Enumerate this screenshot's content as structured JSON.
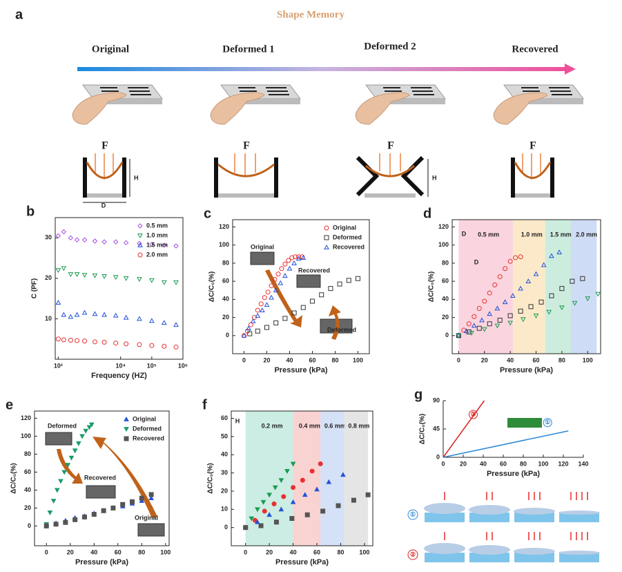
{
  "panel_a": {
    "letter": "a",
    "title": "Shape Memory",
    "stages": [
      "Original",
      "Deformed 1",
      "Deformed 2",
      "Recovered"
    ],
    "force": "F",
    "height": "H",
    "diameter": "D"
  },
  "chart_data": [
    {
      "panel": "b",
      "type": "scatter",
      "xlog": true,
      "xlabel": "Frequency (HZ)",
      "ylabel": "C (PF)",
      "legend": "upper right",
      "filled": false,
      "x": [
        100,
        150,
        250,
        400,
        700,
        1500,
        3000,
        7000,
        15000,
        40000,
        100000,
        250000,
        600000
      ],
      "xlim": [
        80,
        1000000
      ],
      "ylim": [
        0,
        35
      ],
      "xticks": [
        {
          "value": 100,
          "label": "10²"
        },
        {
          "value": 10000,
          "label": "10⁴"
        },
        {
          "value": 100000,
          "label": "10⁵"
        },
        {
          "value": 1000000,
          "label": "10⁶"
        }
      ],
      "yticks": [
        10,
        20,
        30
      ],
      "series": [
        {
          "name": "0.5 mm",
          "color": "#a64ee0",
          "marker": "diamond",
          "values": [
            30.5,
            31.5,
            30,
            29.5,
            29.5,
            29.2,
            29,
            29,
            28.8,
            28.6,
            28.4,
            28.2,
            28
          ]
        },
        {
          "name": "1.0 mm",
          "color": "#1a9a50",
          "marker": "triangle-down",
          "values": [
            22,
            22.5,
            21,
            21,
            20.8,
            20.7,
            20.5,
            20.3,
            20,
            19.8,
            19.5,
            19,
            19
          ]
        },
        {
          "name": "1.5 mm",
          "color": "#1f4fd9",
          "marker": "triangle-up",
          "values": [
            14,
            11,
            10.5,
            11,
            11.5,
            11.2,
            11,
            10.8,
            10.3,
            10,
            9.5,
            9,
            8.5
          ]
        },
        {
          "name": "2.0 mm",
          "color": "#e83030",
          "marker": "circle",
          "values": [
            5,
            4.8,
            4.7,
            4.6,
            4.5,
            4.3,
            4.2,
            4,
            3.8,
            3.6,
            3.4,
            3.2,
            3
          ]
        }
      ]
    },
    {
      "panel": "c",
      "type": "scatter",
      "xlabel": "Pressure (kPa)",
      "ylabel": "ΔC/C₀(%)",
      "legend": "upper right",
      "filled": false,
      "xlim": [
        -10,
        110
      ],
      "ylim": [
        -20,
        128
      ],
      "xticks": [
        0,
        20,
        40,
        60,
        80,
        100
      ],
      "yticks": [
        0,
        20,
        40,
        60,
        80,
        100,
        120
      ],
      "annotations": [
        {
          "text": "Original"
        },
        {
          "text": "Recovered"
        },
        {
          "text": "Deformed"
        }
      ],
      "series": [
        {
          "name": "Original",
          "color": "#e83030",
          "marker": "circle",
          "x": [
            0,
            3,
            6,
            9,
            12,
            15,
            18,
            21,
            24,
            27,
            30,
            33,
            36,
            39,
            42,
            45,
            48,
            51
          ],
          "values": [
            0,
            5,
            12,
            20,
            28,
            35,
            42,
            48,
            55,
            62,
            68,
            74,
            79,
            83,
            86,
            87,
            87,
            87
          ]
        },
        {
          "name": "Deformed",
          "color": "#333333",
          "marker": "square",
          "x": [
            5,
            12,
            20,
            28,
            36,
            44,
            52,
            60,
            68,
            76,
            84,
            92,
            100
          ],
          "values": [
            2,
            5,
            9,
            14,
            19,
            25,
            31,
            38,
            45,
            52,
            57,
            61,
            63
          ]
        },
        {
          "name": "Recovered",
          "color": "#1f4fd9",
          "marker": "triangle-up",
          "x": [
            0,
            4,
            8,
            12,
            16,
            20,
            24,
            28,
            32,
            36,
            40,
            44,
            48,
            52
          ],
          "values": [
            0,
            8,
            16,
            22,
            28,
            34,
            42,
            50,
            58,
            66,
            74,
            80,
            85,
            86
          ]
        }
      ]
    },
    {
      "panel": "d",
      "type": "scatter",
      "xlabel": "Pressure (kPa)",
      "ylabel": "ΔC/C₀(%)",
      "filled": false,
      "xlim": [
        -5,
        110
      ],
      "ylim": [
        -20,
        128
      ],
      "xticks": [
        0,
        20,
        40,
        60,
        80,
        100
      ],
      "yticks": [
        0,
        20,
        40,
        60,
        80,
        100,
        120
      ],
      "bands": [
        {
          "from": 0,
          "to": 42,
          "color": "#f9c9d6",
          "label": "0.5 mm"
        },
        {
          "from": 42,
          "to": 67,
          "color": "#fbe3bd",
          "label": "1.0 mm"
        },
        {
          "from": 67,
          "to": 87,
          "color": "#bfe8d6",
          "label": "1.5 mm"
        },
        {
          "from": 87,
          "to": 107,
          "color": "#c3d3f2",
          "label": "2.0 mm"
        }
      ],
      "annotations": [
        {
          "text": "D"
        },
        {
          "text": "D"
        }
      ],
      "series": [
        {
          "color": "#e83030",
          "marker": "circle",
          "x": [
            0,
            4,
            8,
            12,
            16,
            20,
            24,
            28,
            32,
            36,
            40,
            44,
            48
          ],
          "values": [
            0,
            6,
            13,
            21,
            30,
            38,
            47,
            56,
            65,
            74,
            82,
            86,
            87
          ]
        },
        {
          "color": "#1f4fd9",
          "marker": "triangle-up",
          "x": [
            0,
            6,
            12,
            18,
            24,
            30,
            36,
            42,
            48,
            54,
            60,
            66,
            72,
            78
          ],
          "values": [
            0,
            5,
            11,
            17,
            24,
            30,
            37,
            44,
            52,
            60,
            68,
            78,
            88,
            92
          ]
        },
        {
          "color": "#333333",
          "marker": "square",
          "x": [
            0,
            8,
            16,
            24,
            32,
            40,
            48,
            56,
            64,
            72,
            80,
            88,
            96
          ],
          "values": [
            0,
            4,
            8,
            13,
            17,
            22,
            27,
            32,
            37,
            44,
            52,
            60,
            63
          ]
        },
        {
          "color": "#1a9a50",
          "marker": "triangle-down",
          "x": [
            0,
            10,
            20,
            30,
            40,
            50,
            60,
            70,
            80,
            90,
            100,
            108
          ],
          "values": [
            0,
            3,
            7,
            11,
            14,
            18,
            22,
            26,
            31,
            36,
            41,
            46
          ]
        }
      ]
    },
    {
      "panel": "e",
      "type": "scatter",
      "xlabel": "Pressure (kPa)",
      "ylabel": "ΔC/C₀(%)",
      "legend": "upper right",
      "filled": true,
      "xlim": [
        -10,
        103
      ],
      "ylim": [
        -22,
        128
      ],
      "xticks": [
        0,
        20,
        40,
        60,
        80,
        100
      ],
      "yticks": [
        0,
        20,
        40,
        60,
        80,
        100,
        120
      ],
      "annotations": [
        {
          "text": "Deformed"
        },
        {
          "text": "Recovered"
        },
        {
          "text": "Original"
        }
      ],
      "series": [
        {
          "name": "Original",
          "color": "#2454d6",
          "marker": "triangle-up",
          "x": [
            0,
            8,
            16,
            24,
            32,
            40,
            48,
            56,
            64,
            72,
            80,
            88
          ],
          "values": [
            1,
            3,
            6,
            9,
            11,
            14,
            17,
            20,
            22,
            25,
            28,
            31
          ]
        },
        {
          "name": "Deformed",
          "color": "#1a9a6a",
          "marker": "triangle-down",
          "x": [
            0,
            3,
            6,
            9,
            12,
            15,
            18,
            21,
            24,
            27,
            30,
            33,
            36,
            38
          ],
          "values": [
            2,
            15,
            28,
            40,
            50,
            60,
            68,
            76,
            84,
            92,
            100,
            106,
            110,
            113
          ]
        },
        {
          "name": "Recovered",
          "color": "#555555",
          "marker": "square",
          "x": [
            0,
            8,
            16,
            24,
            32,
            40,
            48,
            56,
            64,
            72,
            80,
            88
          ],
          "values": [
            0,
            2,
            4,
            7,
            10,
            13,
            17,
            20,
            24,
            27,
            31,
            35
          ]
        }
      ]
    },
    {
      "panel": "f",
      "type": "scatter",
      "xlabel": "Pressure (kPa)",
      "ylabel": "ΔC/C₀(%)",
      "filled": true,
      "xlim": [
        -12,
        107
      ],
      "ylim": [
        -10,
        64
      ],
      "xticks": [
        0,
        20,
        40,
        60,
        80,
        100
      ],
      "yticks": [
        0,
        10,
        20,
        30,
        40,
        50,
        60
      ],
      "bands": [
        {
          "from": 0,
          "to": 40,
          "color": "#bfe9dc",
          "label": "0.2 mm"
        },
        {
          "from": 40,
          "to": 63,
          "color": "#f8c7c7",
          "label": "0.4 mm"
        },
        {
          "from": 63,
          "to": 83,
          "color": "#c9daf5",
          "label": "0.6 mm"
        },
        {
          "from": 83,
          "to": 103,
          "color": "#dedede",
          "label": "0.8 mm"
        }
      ],
      "annotations": [
        {
          "text": "H"
        }
      ],
      "series": [
        {
          "color": "#1a9a50",
          "marker": "triangle-down",
          "x": [
            0,
            5,
            10,
            15,
            20,
            25,
            30,
            35,
            40
          ],
          "values": [
            0,
            5,
            10,
            14,
            18,
            22,
            26,
            31,
            35
          ]
        },
        {
          "color": "#e83030",
          "marker": "circle",
          "x": [
            0,
            8,
            16,
            24,
            32,
            40,
            48,
            56,
            63
          ],
          "values": [
            0,
            4,
            9,
            13,
            17,
            22,
            26,
            31,
            35
          ]
        },
        {
          "color": "#2454d6",
          "marker": "triangle-up",
          "x": [
            0,
            10,
            20,
            30,
            40,
            50,
            60,
            70,
            82
          ],
          "values": [
            0,
            3,
            7,
            10,
            14,
            18,
            21,
            25,
            29
          ]
        },
        {
          "color": "#555555",
          "marker": "square",
          "x": [
            0,
            13,
            26,
            39,
            52,
            65,
            78,
            91,
            103
          ],
          "values": [
            0,
            1,
            3,
            5,
            7,
            9,
            12,
            15,
            18
          ]
        }
      ]
    },
    {
      "panel": "g",
      "type": "line",
      "xlabel": "Pressure (kPa)",
      "ylabel": "ΔC/C₀(%)",
      "xlim": [
        0,
        140
      ],
      "ylim": [
        0,
        90
      ],
      "xticks": [
        0,
        20,
        40,
        60,
        80,
        100,
        120,
        140
      ],
      "yticks": [
        0,
        45,
        90
      ],
      "rows": [
        "①",
        "②"
      ],
      "series": [
        {
          "name": "①",
          "color": "#2a86d8",
          "x": [
            0,
            125
          ],
          "values": [
            0,
            42
          ]
        },
        {
          "name": "②",
          "color": "#d92020",
          "x": [
            0,
            41
          ],
          "values": [
            0,
            90
          ]
        }
      ]
    }
  ]
}
